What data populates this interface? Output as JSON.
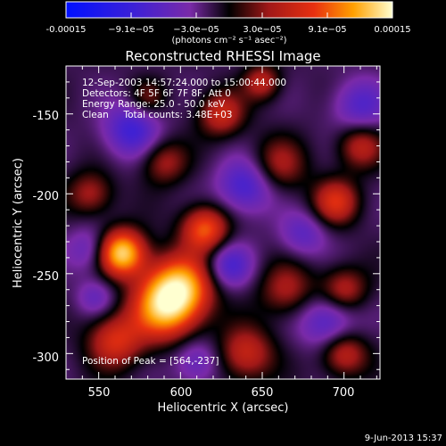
{
  "colorbar": {
    "tick_labels": [
      "-0.00015",
      "−9.1e−05",
      "−3.0e−05",
      "3.0e−05",
      "9.1e−05",
      "0.00015"
    ],
    "unit_label": "(photons cm⁻² s⁻¹ asec⁻²)",
    "range": [
      -0.00015,
      0.00015
    ]
  },
  "chart_data": {
    "type": "heatmap",
    "title": "Reconstructed RHESSI Image",
    "xlabel": "Heliocentric X (arcsec)",
    "ylabel": "Heliocentric Y (arcsec)",
    "xlim": [
      530,
      722
    ],
    "ylim": [
      -316,
      -120
    ],
    "x_ticks": [
      550,
      600,
      650,
      700
    ],
    "y_ticks": [
      -150,
      -200,
      -250,
      -300
    ],
    "grid": false,
    "annotations": [
      "12-Sep-2003 14:57:24.000 to 15:00:44.000",
      "Detectors: 4F 5F 6F 7F 8F, Att 0",
      "Energy Range: 25.0 - 50.0 keV",
      "Clean     Total counts: 3.48E+03"
    ],
    "peak_label": "Position of Peak = [564,-237]",
    "peak": [
      564,
      -237
    ],
    "footer_date": "9-Jun-2013 15:37",
    "blobs": [
      {
        "x": 564,
        "y": -237,
        "v": 1.0,
        "s": 10
      },
      {
        "x": 600,
        "y": -258,
        "v": 0.8,
        "s": 14
      },
      {
        "x": 590,
        "y": -272,
        "v": 0.75,
        "s": 14
      },
      {
        "x": 615,
        "y": -222,
        "v": 0.65,
        "s": 10
      },
      {
        "x": 560,
        "y": -292,
        "v": 0.5,
        "s": 12
      },
      {
        "x": 545,
        "y": -200,
        "v": 0.35,
        "s": 10
      },
      {
        "x": 590,
        "y": -180,
        "v": 0.35,
        "s": 10
      },
      {
        "x": 625,
        "y": -150,
        "v": 0.45,
        "s": 10
      },
      {
        "x": 660,
        "y": -182,
        "v": 0.35,
        "s": 12
      },
      {
        "x": 695,
        "y": -205,
        "v": 0.5,
        "s": 10
      },
      {
        "x": 710,
        "y": -170,
        "v": 0.4,
        "s": 10
      },
      {
        "x": 665,
        "y": -260,
        "v": 0.35,
        "s": 12
      },
      {
        "x": 700,
        "y": -260,
        "v": 0.4,
        "s": 10
      },
      {
        "x": 640,
        "y": -300,
        "v": 0.45,
        "s": 12
      },
      {
        "x": 700,
        "y": -300,
        "v": 0.45,
        "s": 10
      },
      {
        "x": 650,
        "y": -130,
        "v": 0.4,
        "s": 8
      },
      {
        "x": 580,
        "y": -140,
        "v": 0.25,
        "s": 8
      },
      {
        "x": 570,
        "y": -160,
        "v": -0.45,
        "s": 12
      },
      {
        "x": 640,
        "y": -195,
        "v": -0.45,
        "s": 12
      },
      {
        "x": 545,
        "y": -235,
        "v": -0.3,
        "s": 10
      },
      {
        "x": 630,
        "y": -245,
        "v": -0.4,
        "s": 10
      },
      {
        "x": 690,
        "y": -280,
        "v": -0.4,
        "s": 12
      },
      {
        "x": 710,
        "y": -145,
        "v": -0.35,
        "s": 12
      },
      {
        "x": 610,
        "y": -305,
        "v": -0.3,
        "s": 10
      },
      {
        "x": 548,
        "y": -265,
        "v": -0.25,
        "s": 8
      },
      {
        "x": 675,
        "y": -225,
        "v": -0.3,
        "s": 10
      }
    ]
  }
}
